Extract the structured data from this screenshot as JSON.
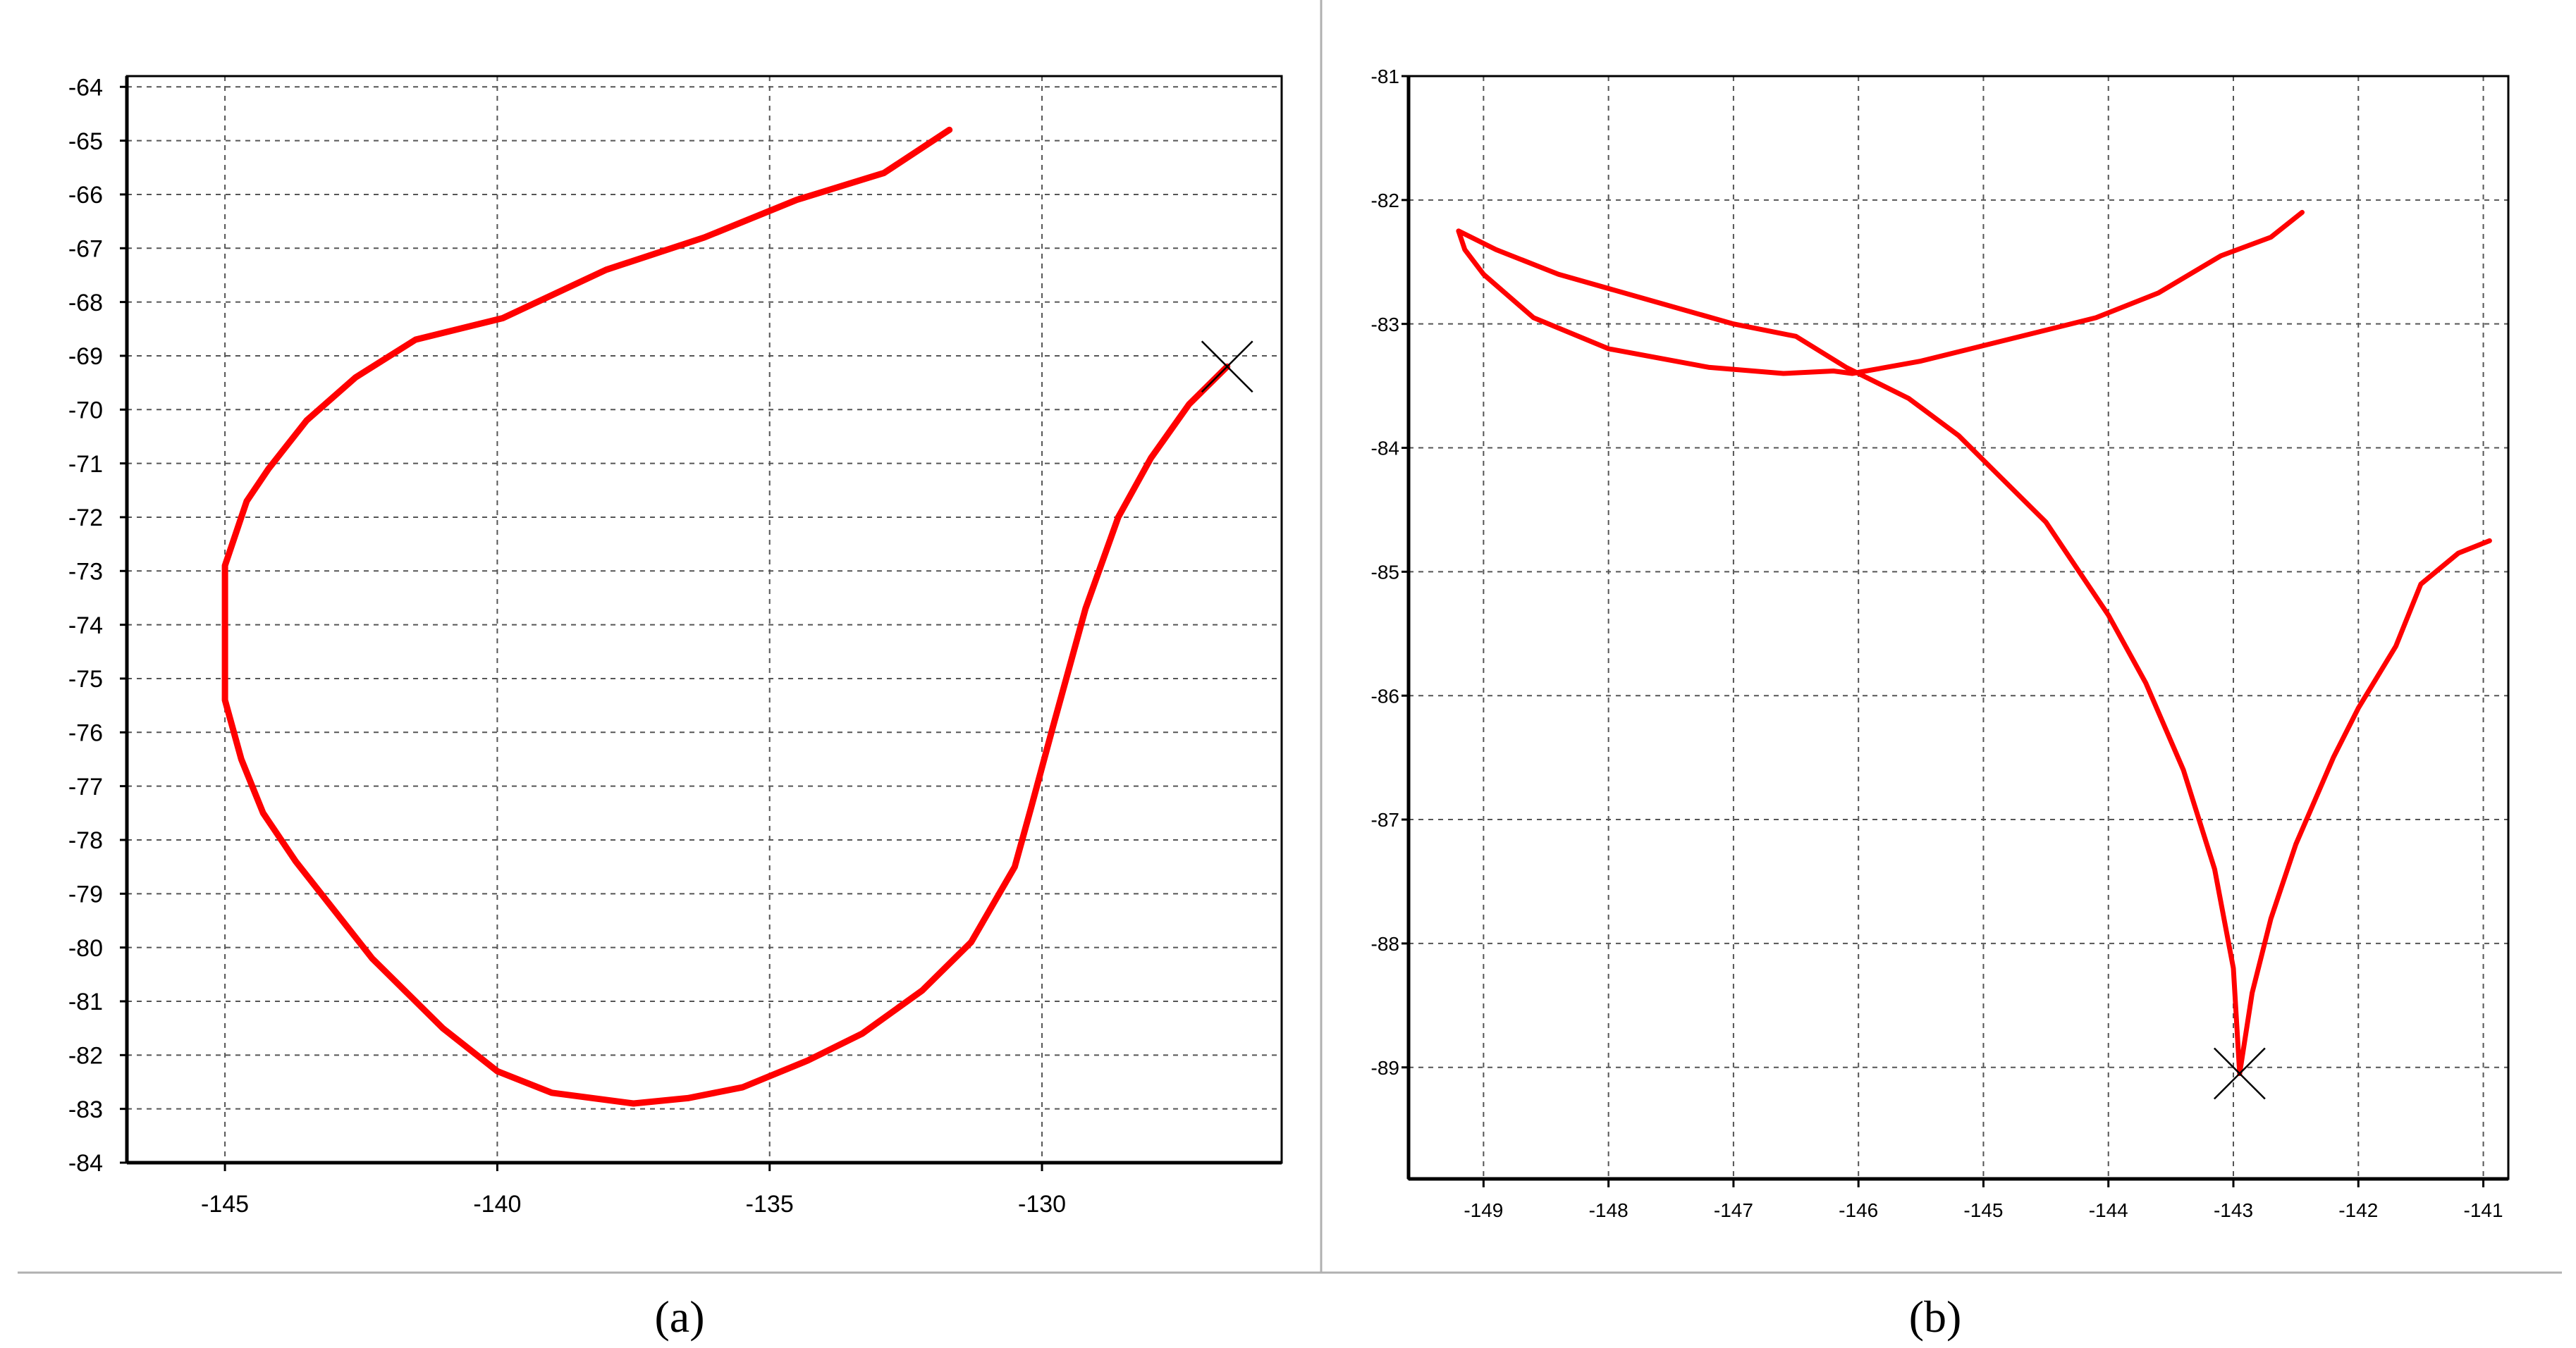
{
  "labels": {
    "a": "(a)",
    "b": "(b)"
  },
  "colors": {
    "trajectory": "#ff0000",
    "grid": "#555555",
    "axis": "#000000"
  },
  "chart_data": [
    {
      "type": "line",
      "panel": "a",
      "xlim": [
        -146.8,
        -125.6
      ],
      "ylim": [
        -84,
        -63.8
      ],
      "xticks": [
        -145,
        -140,
        -135,
        -130
      ],
      "yticks": [
        -64,
        -65,
        -66,
        -67,
        -68,
        -69,
        -70,
        -71,
        -72,
        -73,
        -74,
        -75,
        -76,
        -77,
        -78,
        -79,
        -80,
        -81,
        -82,
        -83,
        -84
      ],
      "grid": true,
      "legend": "none",
      "end_marker": {
        "symbol": "x",
        "x": -126.6,
        "y": -69.2
      },
      "series": [
        {
          "x": [
            -131.7,
            -132.9,
            -134.5,
            -136.2,
            -138.0,
            -139.9,
            -141.5,
            -142.6,
            -143.5,
            -144.2,
            -144.6,
            -145.0,
            -145.0,
            -145.0,
            -144.7,
            -144.3,
            -143.7,
            -143.0,
            -142.3,
            -141.7,
            -141.0,
            -140.0,
            -139.0,
            -137.5,
            -136.5,
            -135.5,
            -134.3,
            -133.3,
            -132.2,
            -131.3,
            -130.5,
            -130.2,
            -129.8,
            -129.2,
            -128.6,
            -128.0,
            -127.3,
            -126.6
          ],
          "y": [
            -64.8,
            -65.6,
            -66.1,
            -66.8,
            -67.4,
            -68.3,
            -68.7,
            -69.4,
            -70.2,
            -71.1,
            -71.7,
            -72.9,
            -74.0,
            -75.4,
            -76.5,
            -77.5,
            -78.4,
            -79.3,
            -80.2,
            -80.8,
            -81.5,
            -82.3,
            -82.7,
            -82.9,
            -82.8,
            -82.6,
            -82.1,
            -81.6,
            -80.8,
            -79.9,
            -78.5,
            -77.4,
            -75.9,
            -73.7,
            -72.0,
            -70.9,
            -69.9,
            -69.2
          ]
        }
      ]
    },
    {
      "type": "line",
      "panel": "b",
      "xlim": [
        -149.6,
        -140.8
      ],
      "ylim": [
        -89.9,
        -81
      ],
      "xticks": [
        -149,
        -148,
        -147,
        -146,
        -145,
        -144,
        -143,
        -142,
        -141
      ],
      "yticks": [
        -81,
        -82,
        -83,
        -84,
        -85,
        -86,
        -87,
        -88,
        -89
      ],
      "grid": true,
      "legend": "none",
      "end_marker": {
        "symbol": "x",
        "x": -142.95,
        "y": -89.05
      },
      "series": [
        {
          "x": [
            -142.45,
            -142.7,
            -143.1,
            -143.6,
            -144.1,
            -144.5,
            -145.1,
            -145.5,
            -146.05,
            -146.2,
            -146.6,
            -147.2,
            -148.0,
            -148.6,
            -149.0,
            -149.15,
            -149.2,
            -148.9,
            -148.4,
            -147.7,
            -147.0,
            -146.5,
            -146.1,
            -145.6,
            -145.2,
            -144.9,
            -144.5,
            -144.3,
            -144.0,
            -143.7,
            -143.4,
            -143.15,
            -143.0,
            -142.95
          ],
          "y": [
            -82.1,
            -82.3,
            -82.45,
            -82.75,
            -82.95,
            -83.05,
            -83.2,
            -83.3,
            -83.4,
            -83.38,
            -83.4,
            -83.35,
            -83.2,
            -82.95,
            -82.6,
            -82.4,
            -82.25,
            -82.4,
            -82.6,
            -82.8,
            -83.0,
            -83.1,
            -83.35,
            -83.6,
            -83.9,
            -84.2,
            -84.6,
            -84.9,
            -85.35,
            -85.9,
            -86.6,
            -87.4,
            -88.2,
            -89.05
          ]
        },
        {
          "x": [
            -142.95,
            -142.85,
            -142.7,
            -142.5,
            -142.2,
            -142.0,
            -141.7,
            -141.5,
            -141.2,
            -140.95
          ],
          "y": [
            -89.05,
            -88.4,
            -87.8,
            -87.2,
            -86.5,
            -86.1,
            -85.6,
            -85.1,
            -84.85,
            -84.75
          ]
        }
      ]
    }
  ]
}
